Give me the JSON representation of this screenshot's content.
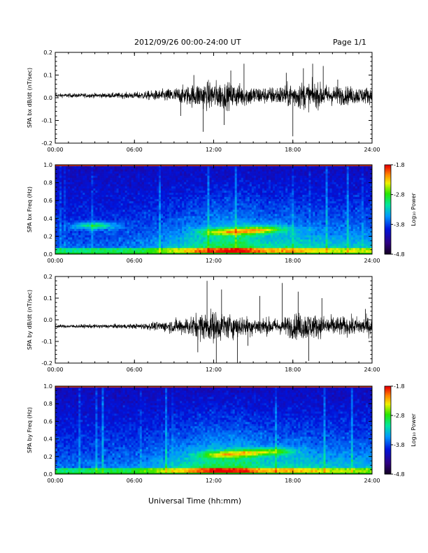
{
  "header": {
    "title": "2012/09/26  00:00-24:00 UT",
    "page": "Page 1/1"
  },
  "x_axis_title": "Universal Time (hh:mm)",
  "colorbar": {
    "label": "Log₁₀ Power",
    "ticks": [
      "-1.8",
      "-2.8",
      "-3.8",
      "-4.8"
    ],
    "range": [
      -4.8,
      -1.8
    ]
  },
  "chart_data": [
    {
      "type": "line",
      "ylabel": "SPA bx dB/dt (nT/sec)",
      "xlim": [
        0,
        24
      ],
      "xticks": [
        "00:00",
        "06:00",
        "12:00",
        "18:00",
        "24:00"
      ],
      "ylim": [
        -0.2,
        0.2
      ],
      "yticks": [
        "0.2",
        "0.1",
        "0.0",
        "-0.1",
        "-0.2"
      ],
      "baseline": 0.01,
      "envelope": [
        [
          0,
          0.012
        ],
        [
          4,
          0.015
        ],
        [
          6,
          0.02
        ],
        [
          8,
          0.035
        ],
        [
          10,
          0.06
        ],
        [
          11,
          0.08
        ],
        [
          12,
          0.09
        ],
        [
          13,
          0.08
        ],
        [
          14,
          0.07
        ],
        [
          16,
          0.05
        ],
        [
          17,
          0.06
        ],
        [
          18.5,
          0.085
        ],
        [
          19.5,
          0.08
        ],
        [
          21,
          0.06
        ],
        [
          24,
          0.05
        ]
      ],
      "spikes": [
        [
          11.2,
          -0.15
        ],
        [
          12.8,
          -0.12
        ],
        [
          13.3,
          0.12
        ],
        [
          14.3,
          0.15
        ],
        [
          17.5,
          0.11
        ],
        [
          18.0,
          -0.17
        ],
        [
          18.8,
          0.13
        ],
        [
          19.5,
          0.15
        ],
        [
          20.3,
          0.14
        ],
        [
          21.4,
          0.08
        ],
        [
          10.5,
          0.1
        ],
        [
          9.5,
          -0.08
        ]
      ]
    },
    {
      "type": "heatmap",
      "ylabel": "SPA bx Freq (Hz)",
      "xlim": [
        0,
        24
      ],
      "xticks": [
        "00:00",
        "06:00",
        "12:00",
        "18:00",
        "24:00"
      ],
      "ylim": [
        0,
        1
      ],
      "yticks": [
        "1.0",
        "0.8",
        "0.6",
        "0.4",
        "0.2",
        "0.0"
      ],
      "zlabel": "Log₁₀ Power",
      "zlim": [
        -4.8,
        -1.8
      ],
      "activity": [
        [
          0,
          0.1
        ],
        [
          6,
          0.2
        ],
        [
          9,
          0.45
        ],
        [
          12,
          0.8
        ],
        [
          14,
          0.9
        ],
        [
          16,
          0.6
        ],
        [
          18,
          0.65
        ],
        [
          20,
          0.5
        ],
        [
          24,
          0.45
        ]
      ],
      "bands": [
        [
          12.5,
          0.25
        ],
        [
          14.5,
          0.26
        ],
        [
          16,
          0.28
        ],
        [
          3,
          0.32
        ]
      ]
    },
    {
      "type": "line",
      "ylabel": "SPA by dB/dt (nT/sec)",
      "xlim": [
        0,
        24
      ],
      "xticks": [
        "00:00",
        "06:00",
        "12:00",
        "18:00",
        "24:00"
      ],
      "ylim": [
        -0.2,
        0.2
      ],
      "yticks": [
        "0.2",
        "0.1",
        "0.0",
        "-0.1",
        "-0.2"
      ],
      "baseline": -0.03,
      "envelope": [
        [
          0,
          0.01
        ],
        [
          6,
          0.015
        ],
        [
          8,
          0.03
        ],
        [
          10,
          0.06
        ],
        [
          11,
          0.09
        ],
        [
          12,
          0.1
        ],
        [
          13,
          0.08
        ],
        [
          15,
          0.06
        ],
        [
          17,
          0.05
        ],
        [
          18,
          0.08
        ],
        [
          19,
          0.09
        ],
        [
          20,
          0.07
        ],
        [
          22,
          0.06
        ],
        [
          24,
          0.06
        ]
      ],
      "spikes": [
        [
          11.5,
          0.18
        ],
        [
          12.2,
          -0.2
        ],
        [
          12.6,
          0.14
        ],
        [
          13.8,
          -0.2
        ],
        [
          15.5,
          0.11
        ],
        [
          17.2,
          0.17
        ],
        [
          18.4,
          0.13
        ],
        [
          19.2,
          -0.19
        ],
        [
          10.8,
          -0.15
        ],
        [
          14.6,
          -0.12
        ],
        [
          20.2,
          0.1
        ],
        [
          23.5,
          0.05
        ]
      ]
    },
    {
      "type": "heatmap",
      "ylabel": "SPA by Freq (Hz)",
      "xlim": [
        0,
        24
      ],
      "xticks": [
        "00:00",
        "06:00",
        "12:00",
        "18:00",
        "24:00"
      ],
      "ylim": [
        0,
        1
      ],
      "yticks": [
        "1.0",
        "0.8",
        "0.6",
        "0.4",
        "0.2",
        "0.0"
      ],
      "zlabel": "Log₁₀ Power",
      "zlim": [
        -4.8,
        -1.8
      ],
      "activity": [
        [
          0,
          0.15
        ],
        [
          6,
          0.25
        ],
        [
          9,
          0.5
        ],
        [
          12,
          0.85
        ],
        [
          14,
          0.85
        ],
        [
          16,
          0.6
        ],
        [
          18,
          0.6
        ],
        [
          20,
          0.5
        ],
        [
          24,
          0.4
        ]
      ],
      "bands": [
        [
          12.5,
          0.22
        ],
        [
          14.5,
          0.24
        ],
        [
          16.5,
          0.26
        ]
      ]
    }
  ]
}
